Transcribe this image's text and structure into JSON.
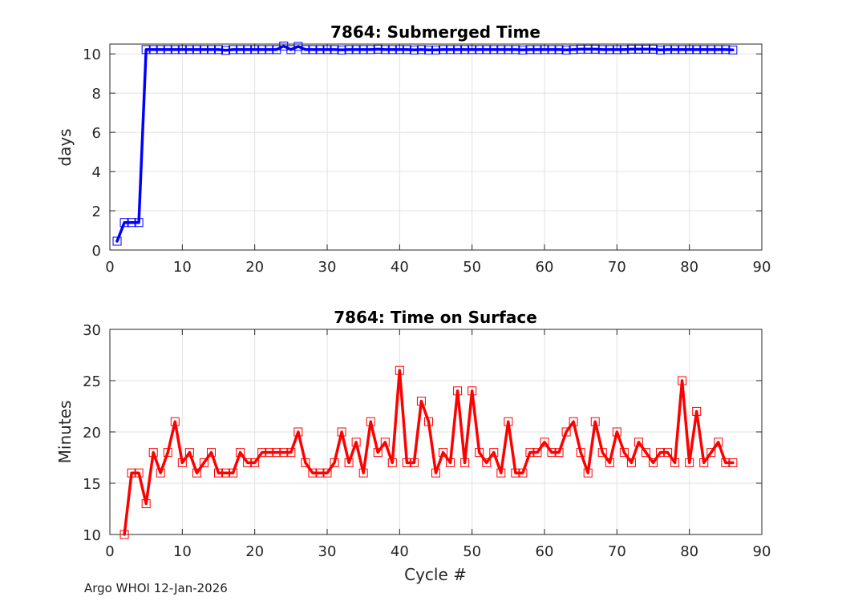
{
  "chart_data": [
    {
      "type": "line",
      "title": "7864: Submerged Time",
      "xlabel": "",
      "ylabel": "days",
      "xlim": [
        0,
        90
      ],
      "ylim": [
        0,
        10.5
      ],
      "xticks": [
        0,
        10,
        20,
        30,
        40,
        50,
        60,
        70,
        80,
        90
      ],
      "yticks": [
        0,
        2,
        4,
        6,
        8,
        10
      ],
      "color": "#0000ff",
      "marker": "square",
      "grid": true,
      "series": [
        {
          "name": "Submerged Time",
          "x": [
            1,
            2,
            3,
            4,
            5,
            6,
            7,
            8,
            9,
            10,
            11,
            12,
            13,
            14,
            15,
            16,
            17,
            18,
            19,
            20,
            21,
            22,
            23,
            24,
            25,
            26,
            27,
            28,
            29,
            30,
            31,
            32,
            33,
            34,
            35,
            36,
            37,
            38,
            39,
            40,
            41,
            42,
            43,
            44,
            45,
            46,
            47,
            48,
            49,
            50,
            51,
            52,
            53,
            54,
            55,
            56,
            57,
            58,
            59,
            60,
            61,
            62,
            63,
            64,
            65,
            66,
            67,
            68,
            69,
            70,
            71,
            72,
            73,
            74,
            75,
            76,
            77,
            78,
            79,
            80,
            81,
            82,
            83,
            84,
            85,
            86
          ],
          "y": [
            0.45,
            1.4,
            1.4,
            1.4,
            10.22,
            10.22,
            10.22,
            10.22,
            10.22,
            10.22,
            10.22,
            10.22,
            10.22,
            10.22,
            10.22,
            10.18,
            10.22,
            10.22,
            10.22,
            10.22,
            10.22,
            10.22,
            10.22,
            10.4,
            10.22,
            10.38,
            10.22,
            10.22,
            10.22,
            10.22,
            10.22,
            10.2,
            10.22,
            10.22,
            10.22,
            10.22,
            10.24,
            10.22,
            10.22,
            10.22,
            10.22,
            10.2,
            10.22,
            10.2,
            10.2,
            10.22,
            10.22,
            10.22,
            10.22,
            10.22,
            10.22,
            10.22,
            10.22,
            10.22,
            10.22,
            10.22,
            10.2,
            10.22,
            10.22,
            10.22,
            10.22,
            10.22,
            10.2,
            10.22,
            10.24,
            10.24,
            10.24,
            10.22,
            10.22,
            10.22,
            10.22,
            10.24,
            10.24,
            10.24,
            10.24,
            10.2,
            10.22,
            10.22,
            10.22,
            10.22,
            10.22,
            10.22,
            10.22,
            10.22,
            10.22,
            10.2
          ]
        }
      ]
    },
    {
      "type": "line",
      "title": "7864: Time on Surface",
      "xlabel": "Cycle #",
      "ylabel": "Minutes",
      "xlim": [
        0,
        90
      ],
      "ylim": [
        10,
        30
      ],
      "xticks": [
        0,
        10,
        20,
        30,
        40,
        50,
        60,
        70,
        80,
        90
      ],
      "yticks": [
        10,
        15,
        20,
        25,
        30
      ],
      "color": "#ff0000",
      "marker": "square",
      "grid": true,
      "series": [
        {
          "name": "Time on Surface",
          "x": [
            2,
            3,
            4,
            5,
            6,
            7,
            8,
            9,
            10,
            11,
            12,
            13,
            14,
            15,
            16,
            17,
            18,
            19,
            20,
            21,
            22,
            23,
            24,
            25,
            26,
            27,
            28,
            29,
            30,
            31,
            32,
            33,
            34,
            35,
            36,
            37,
            38,
            39,
            40,
            41,
            42,
            43,
            44,
            45,
            46,
            47,
            48,
            49,
            50,
            51,
            52,
            53,
            54,
            55,
            56,
            57,
            58,
            59,
            60,
            61,
            62,
            63,
            64,
            65,
            66,
            67,
            68,
            69,
            70,
            71,
            72,
            73,
            74,
            75,
            76,
            77,
            78,
            79,
            80,
            81,
            82,
            83,
            84,
            85,
            86
          ],
          "y": [
            10,
            16,
            16,
            13,
            18,
            16,
            18,
            21,
            17,
            18,
            16,
            17,
            18,
            16,
            16,
            16,
            18,
            17,
            17,
            18,
            18,
            18,
            18,
            18,
            20,
            17,
            16,
            16,
            16,
            17,
            20,
            17,
            19,
            16,
            21,
            18,
            19,
            17,
            26,
            17,
            17,
            23,
            21,
            16,
            18,
            17,
            24,
            17,
            24,
            18,
            17,
            18,
            16,
            21,
            16,
            16,
            18,
            18,
            19,
            18,
            18,
            20,
            21,
            18,
            16,
            21,
            18,
            17,
            20,
            18,
            17,
            19,
            18,
            17,
            18,
            18,
            17,
            25,
            17,
            22,
            17,
            18,
            19,
            17,
            17
          ]
        }
      ]
    }
  ],
  "footer": "Argo WHOI 12-Jan-2026"
}
